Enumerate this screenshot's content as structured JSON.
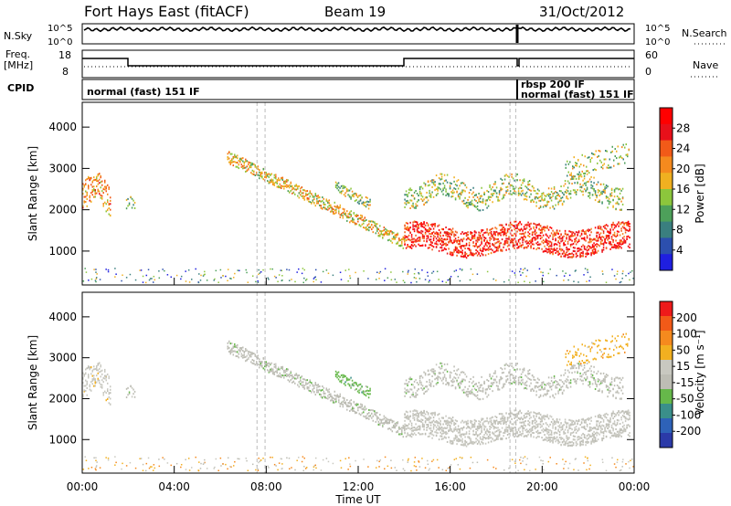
{
  "header": {
    "station": "Fort Hays East (fitACF)",
    "beam": "Beam 19",
    "date": "31/Oct/2012"
  },
  "nsky_panel": {
    "left_label": "N.Sky",
    "right_label": "N.Search",
    "tick_top": "10^5",
    "tick_bottom": "10^0"
  },
  "freq_panel": {
    "left_label_1": "Freq.",
    "left_label_2": "[MHz]",
    "right_label": "Nave",
    "left_ticks": [
      "18",
      "8"
    ],
    "right_ticks": [
      "60",
      "0"
    ]
  },
  "cpid_panel": {
    "label": "CPID",
    "mode_1": "normal (fast) 151 IF",
    "mode_2": "rbsp 200 IF",
    "mode_3": "normal (fast) 151 IF"
  },
  "chart_data": [
    {
      "type": "heatmap",
      "name": "power",
      "ylabel": "Slant Range [km]",
      "yticks": [
        "1000",
        "2000",
        "3000",
        "4000"
      ],
      "colorbar": {
        "label": "Power [dB]",
        "ticks": [
          "4",
          "8",
          "12",
          "16",
          "20",
          "24",
          "28"
        ],
        "colors": [
          "#1f1fe0",
          "#2c4fae",
          "#3a7f7f",
          "#4da05a",
          "#8cc63c",
          "#f0b020",
          "#f58a1e",
          "#f25a18",
          "#e8101a",
          "#ff0000"
        ]
      }
    },
    {
      "type": "heatmap",
      "name": "velocity",
      "xlabel": "Time UT",
      "ylabel": "Slant Range [km]",
      "xticks": [
        "00:00",
        "04:00",
        "08:00",
        "12:00",
        "16:00",
        "20:00",
        "00:00"
      ],
      "yticks": [
        "1000",
        "2000",
        "3000",
        "4000"
      ],
      "colorbar": {
        "label": "Velocity [m s⁻¹]",
        "ticks": [
          "200",
          "100",
          "50",
          "15",
          "-15",
          "-50",
          "-100",
          "-200"
        ],
        "colors": [
          "#2b3aa8",
          "#2e62b8",
          "#3a8f8a",
          "#66b84a",
          "#bdbdb4",
          "#c8c8c0",
          "#f2b020",
          "#f58a1e",
          "#f25a18",
          "#ee1a1a"
        ]
      }
    }
  ]
}
